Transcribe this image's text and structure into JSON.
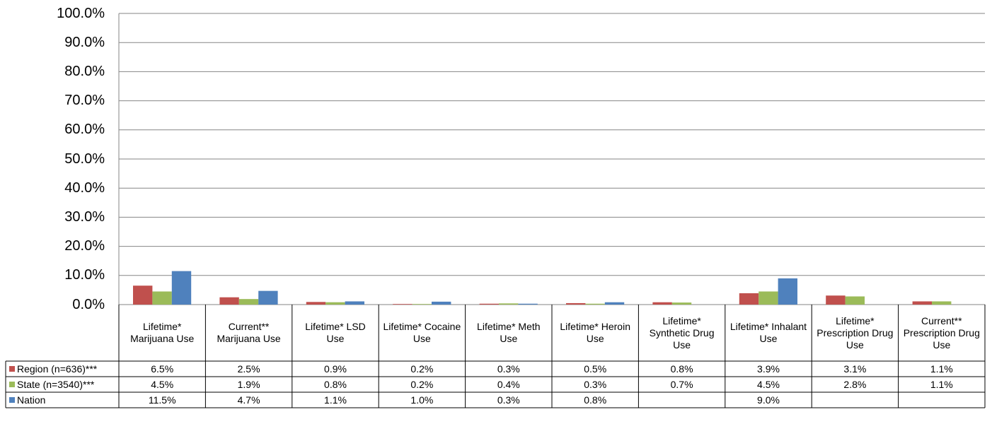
{
  "chart_data": {
    "type": "bar",
    "categories": [
      "Lifetime* Marijuana Use",
      "Current** Marijuana Use",
      "Lifetime* LSD Use",
      "Lifetime* Cocaine Use",
      "Lifetime* Meth Use",
      "Lifetime* Heroin Use",
      "Lifetime* Synthetic Drug Use",
      "Lifetime* Inhalant Use",
      "Lifetime* Prescription Drug Use",
      "Current** Prescription Drug Use"
    ],
    "series": [
      {
        "name": "Region (n=636)***",
        "color": "#c0504d",
        "values": [
          6.5,
          2.5,
          0.9,
          0.2,
          0.3,
          0.5,
          0.8,
          3.9,
          3.1,
          1.1
        ],
        "value_labels": [
          "6.5%",
          "2.5%",
          "0.9%",
          "0.2%",
          "0.3%",
          "0.5%",
          "0.8%",
          "3.9%",
          "3.1%",
          "1.1%"
        ]
      },
      {
        "name": "State (n=3540)***",
        "color": "#9bbb59",
        "values": [
          4.5,
          1.9,
          0.8,
          0.2,
          0.4,
          0.3,
          0.7,
          4.5,
          2.8,
          1.1
        ],
        "value_labels": [
          "4.5%",
          "1.9%",
          "0.8%",
          "0.2%",
          "0.4%",
          "0.3%",
          "0.7%",
          "4.5%",
          "2.8%",
          "1.1%"
        ]
      },
      {
        "name": "Nation",
        "color": "#4f81bd",
        "values": [
          11.5,
          4.7,
          1.1,
          1.0,
          0.3,
          0.8,
          null,
          9.0,
          null,
          null
        ],
        "value_labels": [
          "11.5%",
          "4.7%",
          "1.1%",
          "1.0%",
          "0.3%",
          "0.8%",
          null,
          "9.0%",
          null,
          null
        ]
      }
    ],
    "ylim": [
      0,
      100
    ],
    "yticks": [
      {
        "value": 0,
        "label": "0.0%"
      },
      {
        "value": 10,
        "label": "10.0%"
      },
      {
        "value": 20,
        "label": "20.0%"
      },
      {
        "value": 30,
        "label": "30.0%"
      },
      {
        "value": 40,
        "label": "40.0%"
      },
      {
        "value": 50,
        "label": "50.0%"
      },
      {
        "value": 60,
        "label": "60.0%"
      },
      {
        "value": 70,
        "label": "70.0%"
      },
      {
        "value": 80,
        "label": "80.0%"
      },
      {
        "value": 90,
        "label": "90.0%"
      },
      {
        "value": 100,
        "label": "100.0%"
      }
    ],
    "grid": true,
    "legend": "table"
  }
}
